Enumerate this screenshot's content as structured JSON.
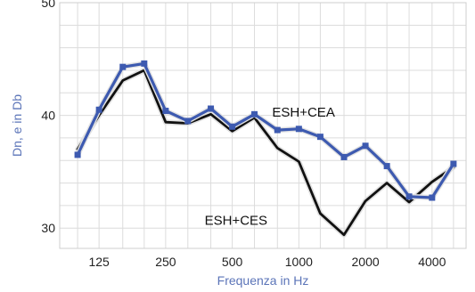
{
  "chart_data": {
    "type": "line",
    "title": "",
    "xlabel": "Frequenza in Hz",
    "ylabel": "Dn, e in Db",
    "ylim": [
      28.2,
      50
    ],
    "grid": true,
    "x_scale": "log",
    "x_domain": [
      83,
      5700
    ],
    "x_ticks": [
      {
        "value": 125,
        "label": "125"
      },
      {
        "value": 250,
        "label": "250"
      },
      {
        "value": 500,
        "label": "500"
      },
      {
        "value": 1000,
        "label": "1000"
      },
      {
        "value": 2000,
        "label": "2000"
      },
      {
        "value": 4000,
        "label": "4000"
      }
    ],
    "y_ticks": [
      {
        "value": 30,
        "label": "30"
      },
      {
        "value": 40,
        "label": "40"
      },
      {
        "value": 50,
        "label": "50"
      }
    ],
    "x": [
      100,
      125,
      160,
      200,
      250,
      315,
      400,
      500,
      630,
      800,
      1000,
      1250,
      1600,
      2000,
      2500,
      3150,
      4000,
      5000
    ],
    "series": [
      {
        "name": "ESH+CEA",
        "color": "#3d5ab0",
        "marker": "square",
        "values": [
          36.5,
          40.5,
          44.3,
          44.6,
          40.4,
          39.5,
          40.6,
          39.0,
          40.1,
          38.7,
          38.8,
          38.1,
          36.3,
          37.3,
          35.5,
          32.8,
          32.7,
          35.7
        ]
      },
      {
        "name": "ESH+CES",
        "color": "#111111",
        "marker": "none",
        "values": [
          37.0,
          40.0,
          43.1,
          44.0,
          39.4,
          39.3,
          40.1,
          38.6,
          39.8,
          37.1,
          35.9,
          31.3,
          29.4,
          32.4,
          34.0,
          32.3,
          34.1,
          35.4
        ]
      }
    ],
    "annotations": [
      {
        "text": "ESH+CEA",
        "series": "ESH+CEA",
        "anchor": {
          "x": 1050,
          "y": 39.9
        }
      },
      {
        "text": "ESH+CES",
        "series": "ESH+CES",
        "anchor": {
          "x": 520,
          "y": 30.3
        }
      }
    ]
  }
}
